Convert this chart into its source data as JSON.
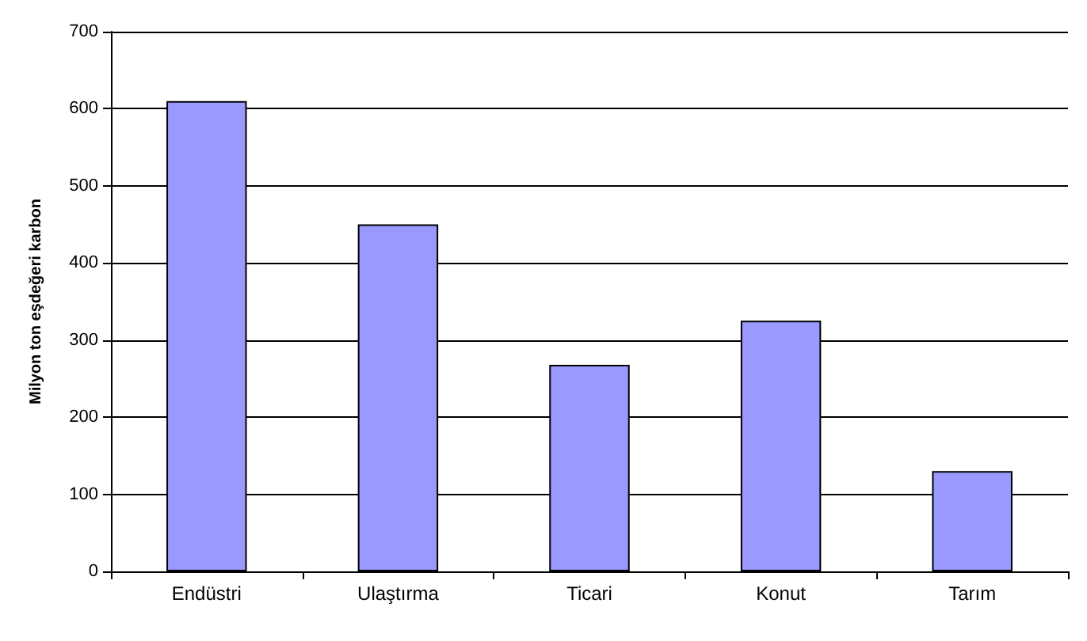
{
  "chart_data": {
    "type": "bar",
    "ylabel": "Milyon ton eşdeğeri karbon",
    "categories": [
      "Endüstri",
      "Ulaştırma",
      "Ticari",
      "Konut",
      "Tarım"
    ],
    "values": [
      610,
      450,
      268,
      325,
      130
    ],
    "color": "#9999ff",
    "ylim": [
      0,
      700
    ],
    "yticks": [
      0,
      100,
      200,
      300,
      400,
      500,
      600,
      700
    ],
    "grid": "y"
  }
}
